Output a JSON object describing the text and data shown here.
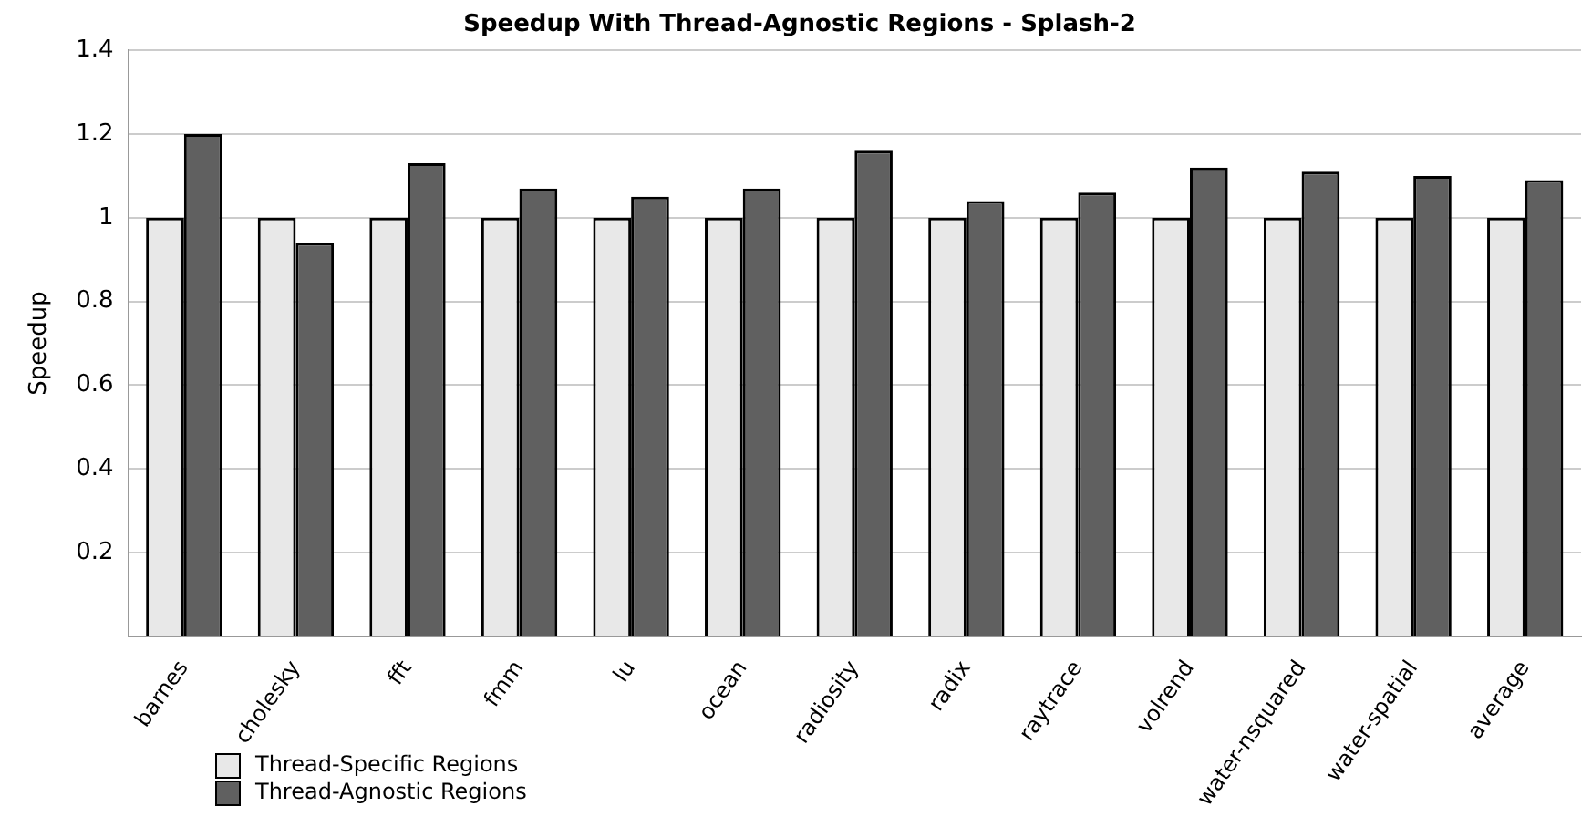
{
  "chart_data": {
    "type": "bar",
    "title": "Speedup With Thread-Agnostic Regions - Splash-2",
    "ylabel": "Speedup",
    "categories": [
      "barnes",
      "cholesky",
      "fft",
      "fmm",
      "lu",
      "ocean",
      "radiosity",
      "radix",
      "raytrace",
      "volrend",
      "water-nsquared",
      "water-spatial",
      "average"
    ],
    "series": [
      {
        "name": "Thread-Specific Regions",
        "color": "#e8e8e8",
        "values": [
          1,
          1,
          1,
          1,
          1,
          1,
          1,
          1,
          1,
          1,
          1,
          1,
          1
        ]
      },
      {
        "name": "Thread-Agnostic Regions",
        "color": "#606060",
        "values": [
          1.2,
          0.94,
          1.13,
          1.07,
          1.05,
          1.07,
          1.16,
          1.04,
          1.06,
          1.12,
          1.11,
          1.1,
          1.09
        ]
      }
    ],
    "ylim": [
      0,
      1.4
    ],
    "yticks": [
      0.2,
      0.4,
      0.6,
      0.8,
      1,
      1.2,
      1.4
    ],
    "grid": "y",
    "legend": "bottom left"
  }
}
